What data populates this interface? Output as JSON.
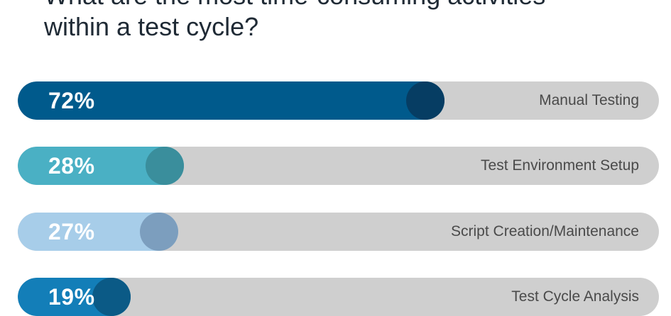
{
  "chart_data": {
    "type": "bar",
    "title_lines": [
      "What are the most time-consuming activities",
      "within a test cycle?"
    ],
    "categories": [
      "Manual Testing",
      "Test Environment Setup",
      "Script Creation/Maintenance",
      "Test Cycle Analysis"
    ],
    "values": [
      72,
      28,
      27,
      19
    ],
    "value_labels": [
      "72%",
      "28%",
      "27%",
      "19%"
    ],
    "ylim": [
      0,
      100
    ],
    "grid": false,
    "legend": "none"
  },
  "colors": {
    "track": "#cfcfcf",
    "bars": [
      "#005a8c",
      "#4ab0c4",
      "#a7cde9",
      "#137eb8"
    ],
    "knobs": [
      "#063d63",
      "#3a8e9c",
      "#7c9ebe",
      "#0b5a86"
    ]
  }
}
